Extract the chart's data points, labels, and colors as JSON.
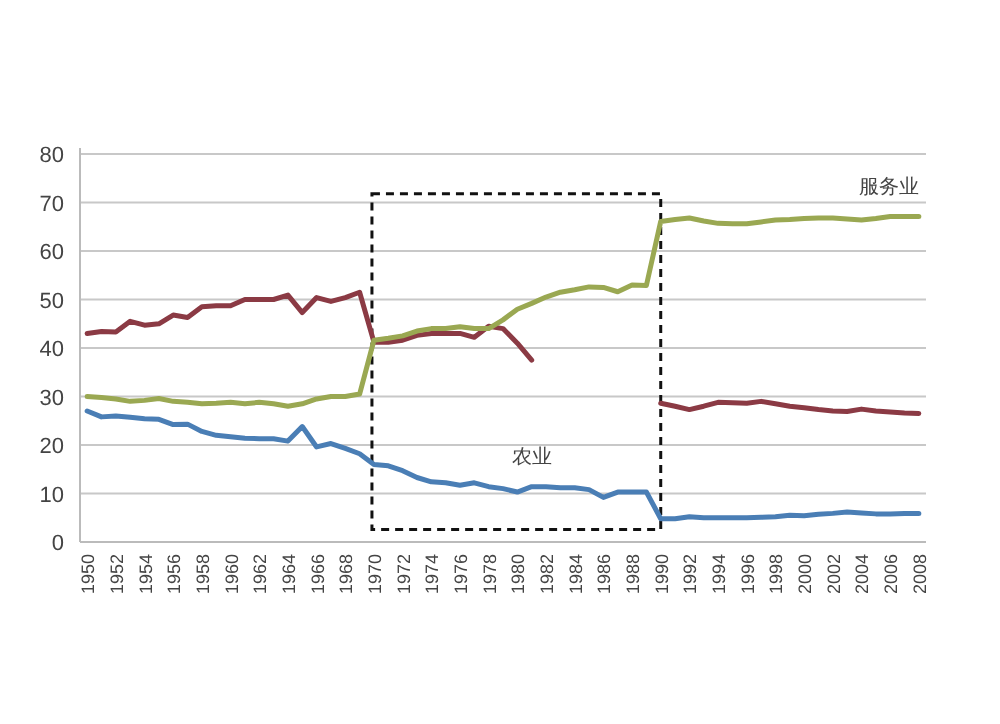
{
  "chart_data": {
    "type": "line",
    "categories": [
      "1950",
      null,
      "1952",
      null,
      "1954",
      null,
      "1956",
      null,
      "1958",
      null,
      "1960",
      null,
      "1962",
      null,
      "1964",
      null,
      "1966",
      null,
      "1968",
      null,
      "1970",
      null,
      "1972",
      null,
      "1974",
      null,
      "1976",
      null,
      "1978",
      null,
      "1980",
      null,
      "1982",
      null,
      "1984",
      null,
      "1986",
      null,
      "1988",
      null,
      "1990",
      null,
      "1992",
      null,
      "1994",
      null,
      "1996",
      null,
      "1998",
      null,
      "2000",
      null,
      "2002",
      null,
      "2004",
      null,
      "2006",
      null,
      "2008"
    ],
    "series": [
      {
        "color": "#8b3a44",
        "values": [
          43,
          43.4,
          43.3,
          45.5,
          44.7,
          45,
          46.8,
          46.3,
          48.5,
          48.7,
          48.7,
          50,
          50,
          50,
          50.9,
          47.3,
          50.4,
          49.6,
          50.4,
          51.5,
          41.2,
          41.2,
          41.6,
          42.6,
          43,
          43,
          43,
          42.2,
          44.5,
          44,
          41,
          37.5,
          null,
          null,
          null,
          null,
          null,
          null,
          null,
          null,
          28.6,
          28,
          27.3,
          28,
          28.8,
          28.7,
          28.6,
          29,
          28.5,
          28,
          27.7,
          27.3,
          27,
          26.9,
          27.4,
          27,
          26.8,
          26.6,
          26.5
        ]
      },
      {
        "name": "服务业",
        "color": "#9aa852",
        "values": [
          30,
          29.8,
          29.5,
          29,
          29.2,
          29.6,
          29,
          28.8,
          28.5,
          28.6,
          28.8,
          28.5,
          28.8,
          28.5,
          28,
          28.5,
          29.5,
          30,
          30,
          30.5,
          41.6,
          42,
          42.5,
          43.5,
          44,
          44,
          44.4,
          44,
          44,
          45.8,
          48,
          49.2,
          50.5,
          51.5,
          52,
          52.6,
          52.5,
          51.6,
          53,
          52.9,
          66.1,
          66.5,
          66.8,
          66.2,
          65.7,
          65.6,
          65.6,
          66,
          66.4,
          66.5,
          66.7,
          66.8,
          66.8,
          66.6,
          66.4,
          66.7,
          67.1,
          67.1,
          67.1
        ]
      },
      {
        "name": "农业",
        "color": "#4a7eb5",
        "values": [
          27,
          25.8,
          26,
          25.7,
          25.4,
          25.3,
          24.2,
          24.3,
          22.8,
          22,
          21.7,
          21.4,
          21.3,
          21.3,
          20.8,
          23.8,
          19.6,
          20.3,
          19.3,
          18.2,
          16,
          15.7,
          14.7,
          13.3,
          12.4,
          12.2,
          11.7,
          12.2,
          11.4,
          11,
          10.3,
          11.4,
          11.4,
          11.2,
          11.2,
          10.8,
          9.2,
          10.3,
          10.3,
          10.3,
          4.8,
          4.8,
          5.2,
          5,
          5,
          5,
          5,
          5.1,
          5.2,
          5.5,
          5.4,
          5.7,
          5.9,
          6.2,
          6,
          5.8,
          5.8,
          5.9,
          5.9
        ]
      }
    ],
    "ylim": [
      0,
      80
    ],
    "yticks": [
      0,
      10,
      20,
      30,
      40,
      50,
      60,
      70,
      80
    ],
    "grid": "y",
    "legend": false,
    "marker": "none",
    "line_style": "solid"
  }
}
